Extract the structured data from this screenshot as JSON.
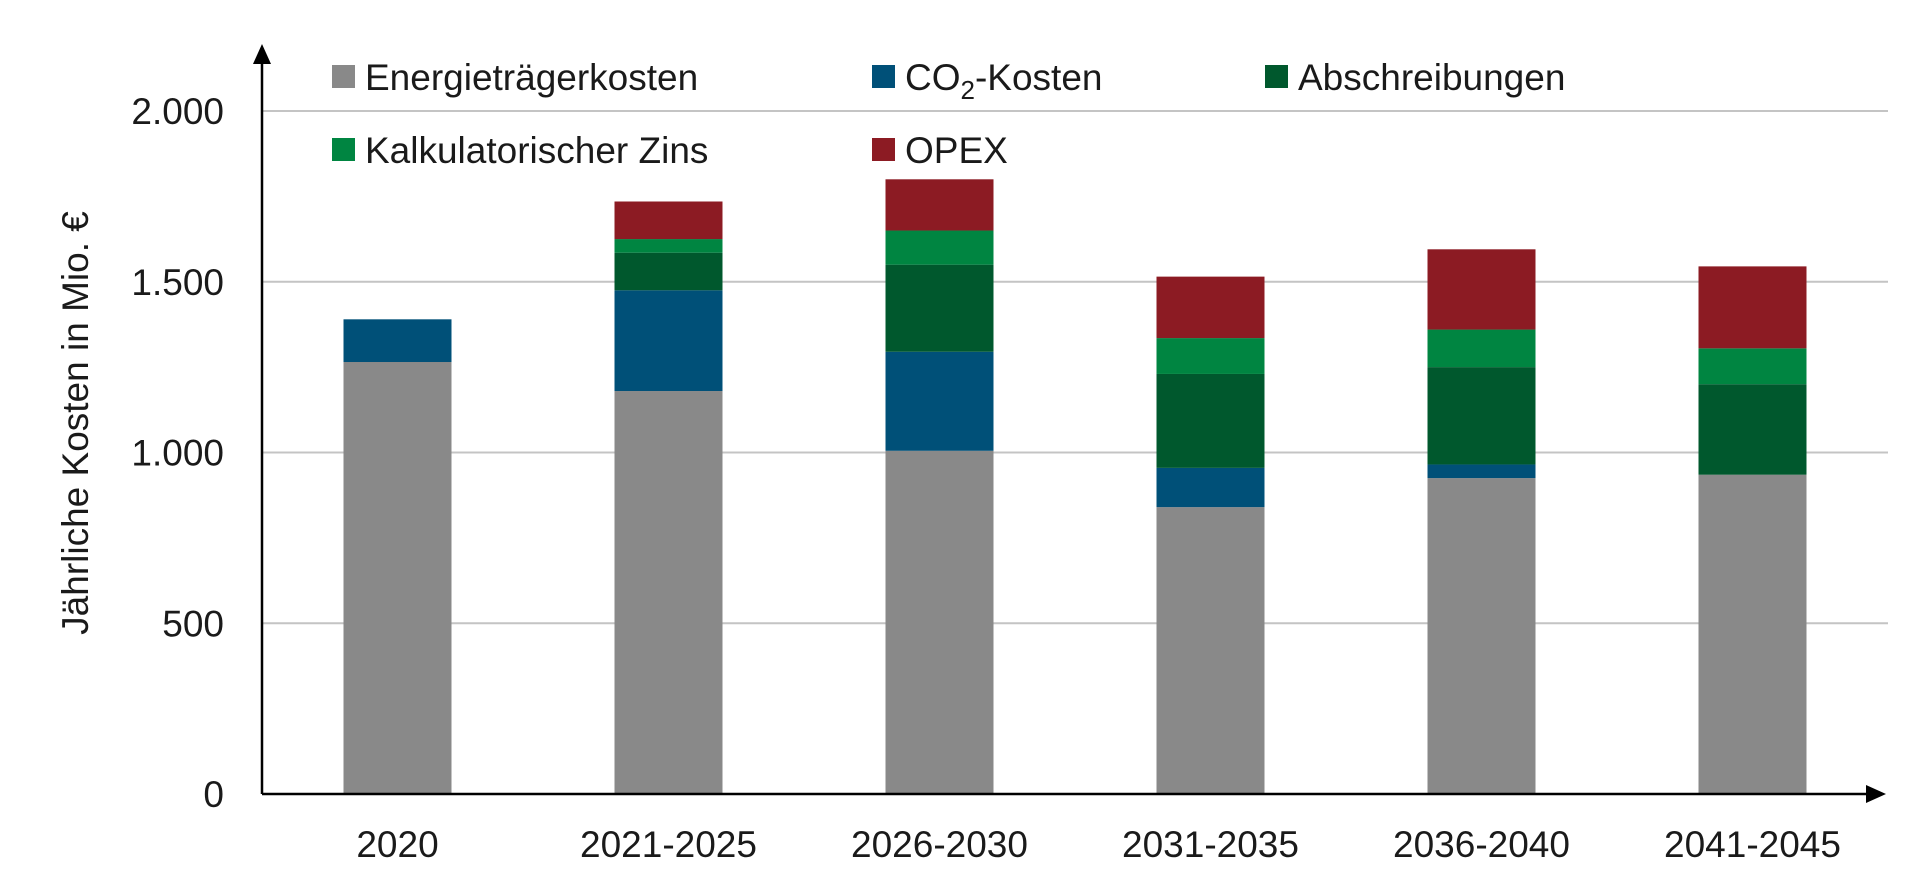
{
  "chart_data": {
    "type": "bar",
    "stacked": true,
    "ylabel": "Jährliche Kosten in Mio. €",
    "ylim": [
      0,
      2200
    ],
    "yticks": [
      0,
      500,
      1000,
      1500,
      2000
    ],
    "ytick_labels": [
      "0",
      "500",
      "1.000",
      "1.500",
      "2.000"
    ],
    "grid": true,
    "legend_position": "top",
    "categories": [
      "2020",
      "2021-2025",
      "2026-2030",
      "2031-2035",
      "2036-2040",
      "2041-2045"
    ],
    "series": [
      {
        "name": "Energieträgerkosten",
        "color": "#898989",
        "values": [
          1265,
          1180,
          1005,
          840,
          925,
          935
        ]
      },
      {
        "name": "CO2-Kosten",
        "legend_parts": [
          "CO",
          "2",
          "-Kosten"
        ],
        "color": "#005078",
        "values": [
          125,
          295,
          290,
          115,
          40,
          0
        ]
      },
      {
        "name": "Abschreibungen",
        "color": "#00582d",
        "values": [
          0,
          110,
          255,
          275,
          285,
          265
        ]
      },
      {
        "name": "Kalkulatorischer Zins",
        "color": "#008541",
        "values": [
          0,
          40,
          100,
          105,
          110,
          105
        ]
      },
      {
        "name": "OPEX",
        "color": "#8c1b23",
        "values": [
          0,
          110,
          150,
          180,
          235,
          240
        ]
      }
    ]
  }
}
